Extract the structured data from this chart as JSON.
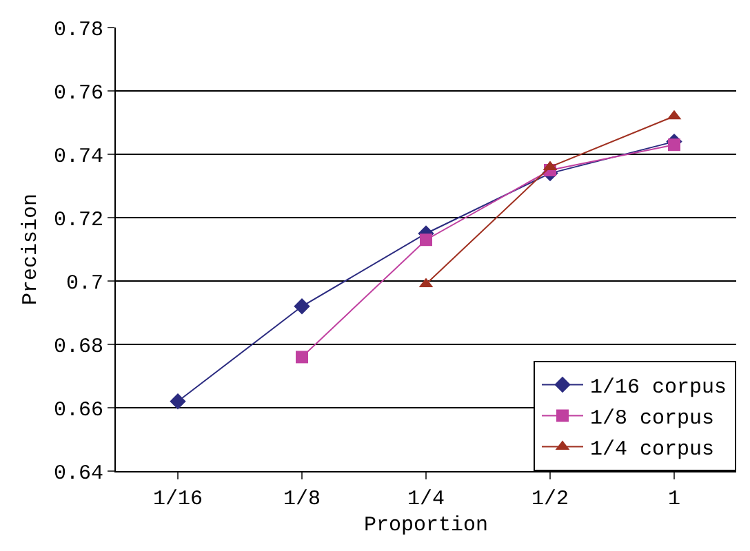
{
  "chart_data": {
    "type": "line",
    "xlabel": "Proportion",
    "ylabel": "Precision",
    "categories": [
      "1/16",
      "1/8",
      "1/4",
      "1/2",
      "1"
    ],
    "series": [
      {
        "name": "1/16 corpus",
        "color": "#2b2b80",
        "marker": "diamond",
        "values": [
          0.662,
          0.692,
          0.715,
          0.734,
          0.744
        ]
      },
      {
        "name": "1/8 corpus",
        "color": "#c040a0",
        "marker": "square",
        "values": [
          null,
          0.676,
          0.713,
          0.735,
          0.743
        ]
      },
      {
        "name": "1/4 corpus",
        "color": "#a03020",
        "marker": "triangle",
        "values": [
          null,
          null,
          0.699,
          0.736,
          0.752
        ]
      }
    ],
    "ylim": [
      0.64,
      0.78
    ],
    "yticks": [
      0.64,
      0.66,
      0.68,
      {
        "value": 0.7,
        "label": "0.7"
      },
      0.72,
      0.74,
      0.76,
      0.78
    ],
    "grid": "y",
    "legend": "bottom right",
    "line_style": "solid"
  }
}
